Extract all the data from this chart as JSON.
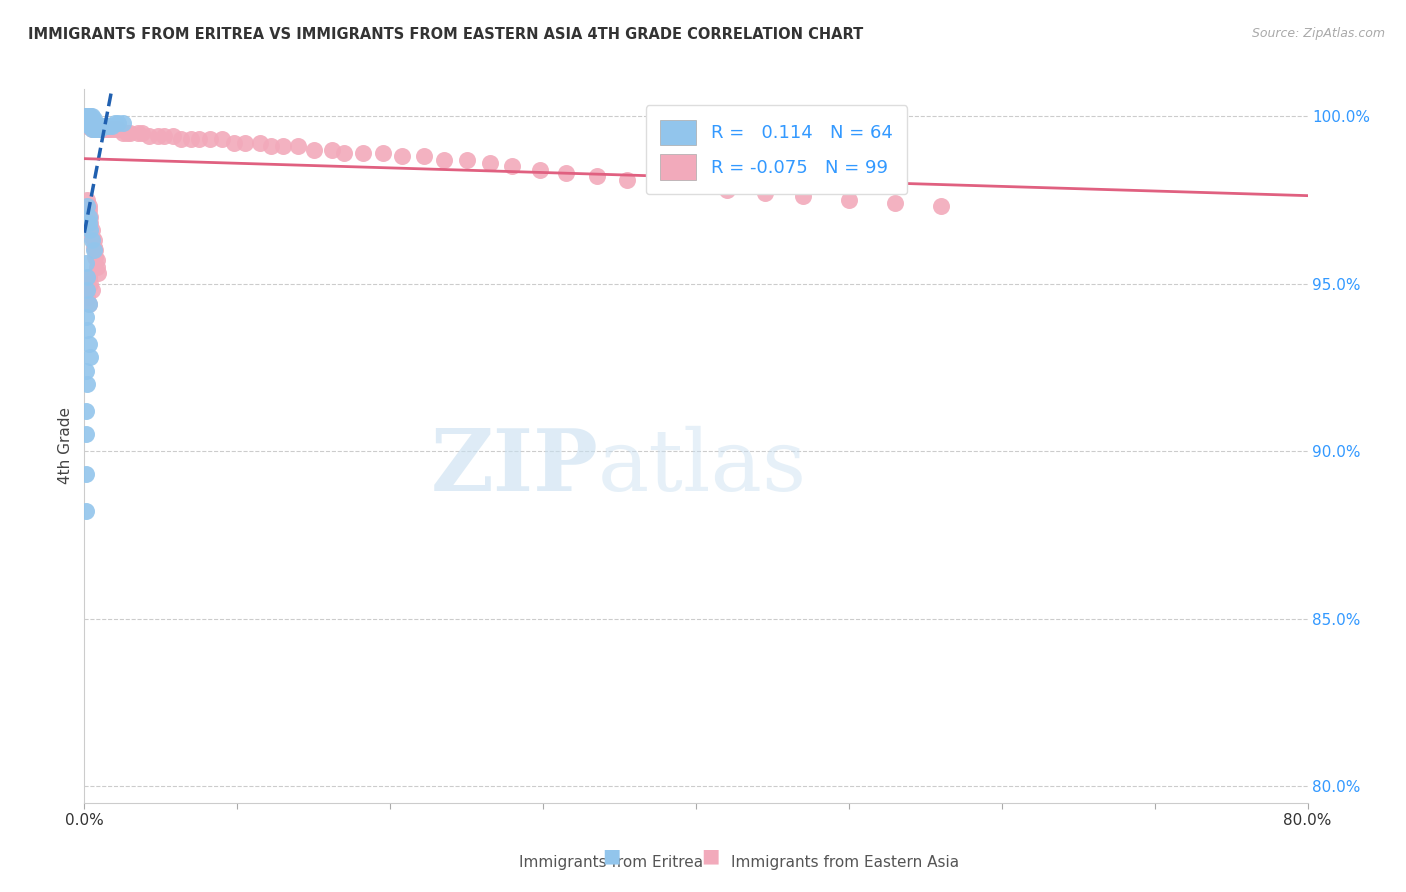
{
  "title": "IMMIGRANTS FROM ERITREA VS IMMIGRANTS FROM EASTERN ASIA 4TH GRADE CORRELATION CHART",
  "source": "Source: ZipAtlas.com",
  "ylabel": "4th Grade",
  "xlim": [
    0.0,
    0.8
  ],
  "ylim": [
    0.795,
    1.008
  ],
  "yticks": [
    0.8,
    0.85,
    0.9,
    0.95,
    1.0
  ],
  "xtick_positions": [
    0.0,
    0.1,
    0.2,
    0.3,
    0.4,
    0.5,
    0.6,
    0.7,
    0.8
  ],
  "xtick_labels": [
    "0.0%",
    "",
    "",
    "",
    "",
    "",
    "",
    "",
    "80.0%"
  ],
  "R_blue": 0.114,
  "N_blue": 64,
  "R_pink": -0.075,
  "N_pink": 99,
  "blue_color": "#92C5EC",
  "pink_color": "#F2AABB",
  "trend_blue_color": "#2060B0",
  "trend_pink_color": "#E06080",
  "watermark_zip": "ZIP",
  "watermark_atlas": "atlas",
  "legend_label_blue": "Immigrants from Eritrea",
  "legend_label_pink": "Immigrants from Eastern Asia",
  "blue_x": [
    0.001,
    0.001,
    0.001,
    0.002,
    0.002,
    0.002,
    0.002,
    0.003,
    0.003,
    0.003,
    0.003,
    0.003,
    0.004,
    0.004,
    0.004,
    0.004,
    0.005,
    0.005,
    0.005,
    0.005,
    0.005,
    0.006,
    0.006,
    0.006,
    0.006,
    0.007,
    0.007,
    0.007,
    0.008,
    0.008,
    0.009,
    0.009,
    0.01,
    0.01,
    0.011,
    0.012,
    0.013,
    0.014,
    0.015,
    0.016,
    0.018,
    0.02,
    0.022,
    0.025,
    0.002,
    0.003,
    0.003,
    0.004,
    0.005,
    0.006,
    0.001,
    0.002,
    0.002,
    0.003,
    0.001,
    0.002,
    0.003,
    0.004,
    0.001,
    0.002,
    0.001,
    0.001,
    0.001,
    0.001
  ],
  "blue_y": [
    1.0,
    0.999,
    1.0,
    0.999,
    1.0,
    0.998,
    0.999,
    0.998,
    0.999,
    1.0,
    0.997,
    0.998,
    0.997,
    0.998,
    0.999,
    1.0,
    0.996,
    0.997,
    0.998,
    0.999,
    1.0,
    0.996,
    0.997,
    0.998,
    0.999,
    0.996,
    0.997,
    0.998,
    0.996,
    0.997,
    0.996,
    0.997,
    0.996,
    0.997,
    0.997,
    0.997,
    0.997,
    0.997,
    0.997,
    0.997,
    0.997,
    0.998,
    0.998,
    0.998,
    0.973,
    0.97,
    0.968,
    0.966,
    0.963,
    0.96,
    0.956,
    0.952,
    0.948,
    0.944,
    0.94,
    0.936,
    0.932,
    0.928,
    0.924,
    0.92,
    0.912,
    0.905,
    0.893,
    0.882
  ],
  "pink_x": [
    0.001,
    0.001,
    0.001,
    0.002,
    0.002,
    0.002,
    0.002,
    0.003,
    0.003,
    0.003,
    0.003,
    0.004,
    0.004,
    0.004,
    0.004,
    0.005,
    0.005,
    0.005,
    0.005,
    0.006,
    0.006,
    0.006,
    0.007,
    0.007,
    0.008,
    0.008,
    0.009,
    0.01,
    0.01,
    0.011,
    0.012,
    0.013,
    0.015,
    0.016,
    0.018,
    0.02,
    0.022,
    0.025,
    0.028,
    0.03,
    0.035,
    0.038,
    0.042,
    0.048,
    0.052,
    0.058,
    0.063,
    0.07,
    0.075,
    0.082,
    0.09,
    0.098,
    0.105,
    0.115,
    0.122,
    0.13,
    0.14,
    0.15,
    0.162,
    0.17,
    0.182,
    0.195,
    0.208,
    0.222,
    0.235,
    0.25,
    0.265,
    0.28,
    0.298,
    0.315,
    0.335,
    0.355,
    0.375,
    0.398,
    0.42,
    0.445,
    0.47,
    0.5,
    0.53,
    0.56,
    0.002,
    0.003,
    0.003,
    0.004,
    0.004,
    0.005,
    0.005,
    0.006,
    0.006,
    0.007,
    0.007,
    0.008,
    0.008,
    0.009,
    0.003,
    0.004,
    0.005,
    0.002,
    0.003
  ],
  "pink_y": [
    0.999,
    0.998,
    1.0,
    0.997,
    0.998,
    0.999,
    1.0,
    0.997,
    0.998,
    0.999,
    1.0,
    0.997,
    0.998,
    0.999,
    1.0,
    0.996,
    0.997,
    0.998,
    0.999,
    0.996,
    0.997,
    0.998,
    0.996,
    0.997,
    0.996,
    0.997,
    0.997,
    0.996,
    0.997,
    0.996,
    0.996,
    0.996,
    0.996,
    0.996,
    0.996,
    0.996,
    0.996,
    0.995,
    0.995,
    0.995,
    0.995,
    0.995,
    0.994,
    0.994,
    0.994,
    0.994,
    0.993,
    0.993,
    0.993,
    0.993,
    0.993,
    0.992,
    0.992,
    0.992,
    0.991,
    0.991,
    0.991,
    0.99,
    0.99,
    0.989,
    0.989,
    0.989,
    0.988,
    0.988,
    0.987,
    0.987,
    0.986,
    0.985,
    0.984,
    0.983,
    0.982,
    0.981,
    0.98,
    0.979,
    0.978,
    0.977,
    0.976,
    0.975,
    0.974,
    0.973,
    0.975,
    0.973,
    0.972,
    0.97,
    0.968,
    0.966,
    0.964,
    0.963,
    0.961,
    0.96,
    0.958,
    0.957,
    0.955,
    0.953,
    0.952,
    0.95,
    0.948,
    0.946,
    0.944
  ]
}
